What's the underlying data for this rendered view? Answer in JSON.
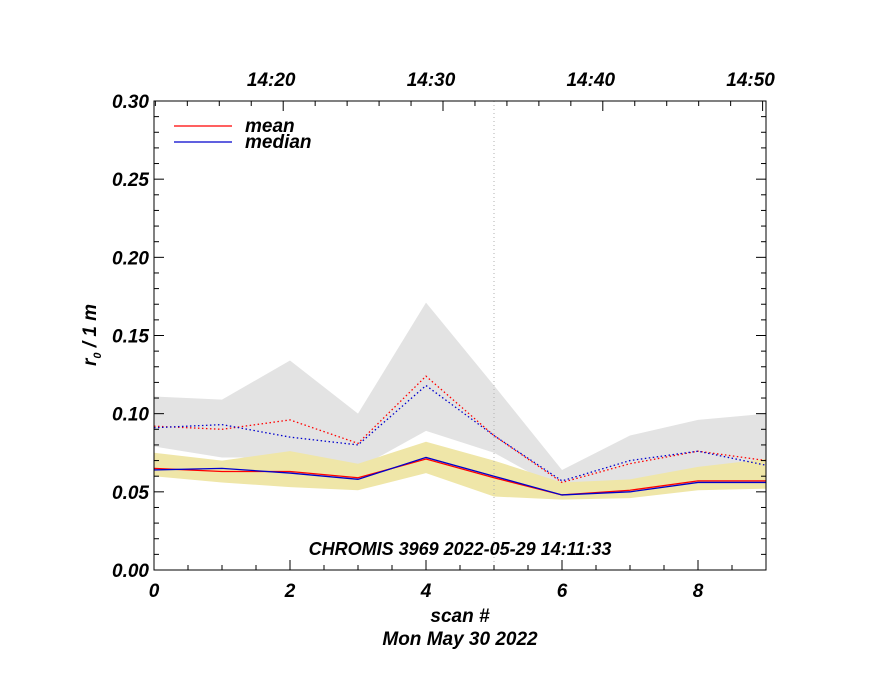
{
  "chart_data": {
    "type": "line",
    "title": "CHROMIS 3969 2022-05-29 14:11:33",
    "xlabel": "scan #",
    "date_label": "Mon May 30 2022",
    "ylabel_main": "r",
    "ylabel_sub": "0",
    "ylabel_rest": " / 1 m",
    "xlim": [
      0,
      9
    ],
    "ylim": [
      0,
      0.3
    ],
    "x_ticks": [
      0,
      2,
      4,
      6,
      8
    ],
    "x_tick_labels": [
      "0",
      "2",
      "4",
      "6",
      "8"
    ],
    "y_ticks": [
      0.0,
      0.05,
      0.1,
      0.15,
      0.2,
      0.25,
      0.3
    ],
    "y_tick_labels": [
      "0.00",
      "0.05",
      "0.10",
      "0.15",
      "0.20",
      "0.25",
      "0.30"
    ],
    "top_axis": {
      "labels": [
        "14:20",
        "14:30",
        "14:40",
        "14:50"
      ],
      "positions": [
        1.9,
        4.25,
        6.6,
        8.95
      ]
    },
    "vertical_marker": 5,
    "x": [
      0,
      1,
      2,
      3,
      4,
      5,
      6,
      7,
      8,
      9
    ],
    "series": [
      {
        "name": "mean",
        "color": "#ff0000",
        "style": "solid",
        "values": [
          0.065,
          0.063,
          0.063,
          0.059,
          0.071,
          0.059,
          0.048,
          0.051,
          0.057,
          0.057
        ]
      },
      {
        "name": "median",
        "color": "#0000cc",
        "style": "solid",
        "values": [
          0.064,
          0.065,
          0.062,
          0.058,
          0.072,
          0.06,
          0.048,
          0.05,
          0.056,
          0.056
        ]
      },
      {
        "name": "mean (upper)",
        "color": "#ff0000",
        "style": "dotted",
        "values": [
          0.092,
          0.09,
          0.096,
          0.081,
          0.124,
          0.086,
          0.056,
          0.068,
          0.076,
          0.07
        ]
      },
      {
        "name": "median (upper)",
        "color": "#0000cc",
        "style": "dotted",
        "values": [
          0.091,
          0.093,
          0.085,
          0.08,
          0.118,
          0.086,
          0.057,
          0.07,
          0.076,
          0.067
        ]
      }
    ],
    "bands": [
      {
        "name": "gray-range",
        "color": "#e3e3e3",
        "upper": [
          0.111,
          0.109,
          0.134,
          0.1,
          0.171,
          0.118,
          0.064,
          0.086,
          0.096,
          0.1
        ],
        "lower": [
          0.079,
          0.072,
          0.072,
          0.065,
          0.089,
          0.075,
          0.051,
          0.054,
          0.06,
          0.063
        ]
      },
      {
        "name": "yellow-range",
        "color": "#efe6a8",
        "upper": [
          0.075,
          0.07,
          0.076,
          0.068,
          0.082,
          0.07,
          0.056,
          0.058,
          0.066,
          0.071
        ],
        "lower": [
          0.06,
          0.056,
          0.053,
          0.051,
          0.062,
          0.047,
          0.045,
          0.046,
          0.051,
          0.052
        ]
      }
    ],
    "legend": {
      "position": "top-left",
      "entries": [
        "mean",
        "median"
      ]
    }
  }
}
